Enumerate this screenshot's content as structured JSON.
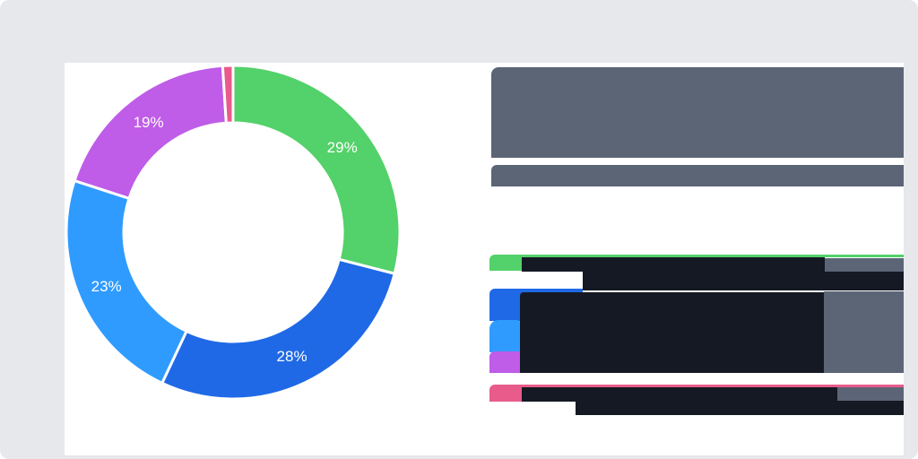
{
  "chart_data": {
    "type": "pie",
    "variant": "donut",
    "title": "",
    "labels": [
      "",
      "",
      "",
      "",
      ""
    ],
    "values": [
      29,
      28,
      23,
      19,
      1
    ],
    "value_labels": [
      "29%",
      "28%",
      "23%",
      "19%",
      ""
    ],
    "colors": [
      "#53d16a",
      "#1f69e6",
      "#2f9bff",
      "#bf5ce8",
      "#e85b8a"
    ],
    "start_angle_deg": 0,
    "direction": "clockwise",
    "legend_position": "right"
  },
  "theme": {
    "page_bg": "#e7e8ec",
    "card_bg": "#ffffff",
    "muted_block": "#5b6576",
    "dark_block": "#151923"
  },
  "legend": {
    "items": [
      {
        "color": "#53d16a",
        "label": "",
        "value": ""
      },
      {
        "color": "#1f69e6",
        "label": "",
        "value": ""
      },
      {
        "color": "#2f9bff",
        "label": "",
        "value": ""
      },
      {
        "color": "#bf5ce8",
        "label": "",
        "value": ""
      },
      {
        "color": "#e85b8a",
        "label": "",
        "value": ""
      }
    ]
  }
}
